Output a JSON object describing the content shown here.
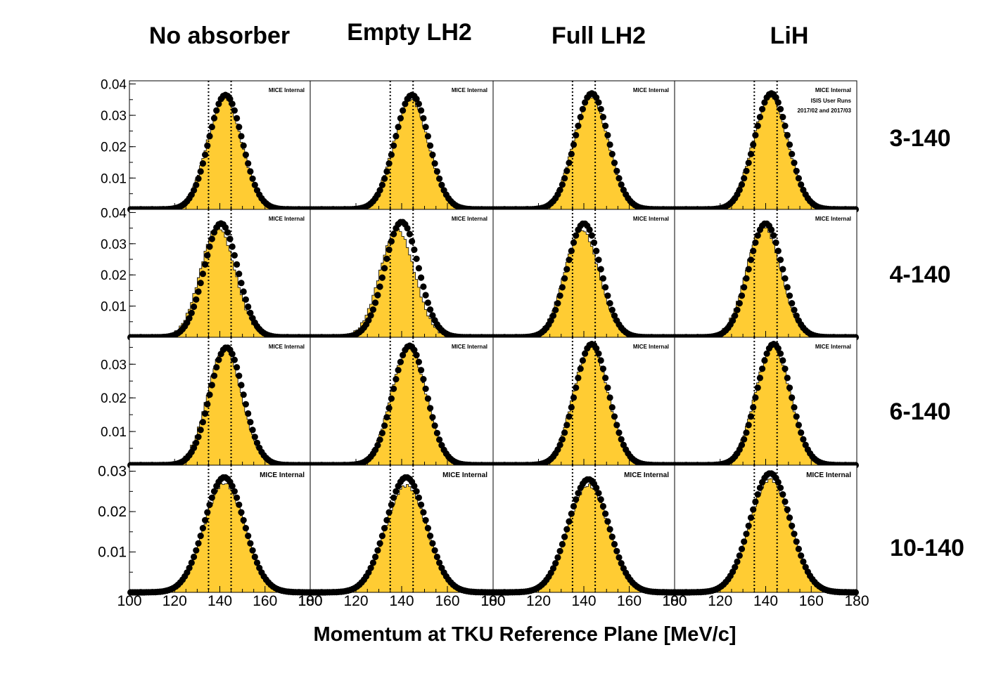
{
  "figure": {
    "column_titles": [
      "No absorber",
      "Empty LH2",
      "Full LH2",
      "LiH"
    ],
    "row_labels": [
      "3-140",
      "4-140",
      "6-140",
      "10-140"
    ],
    "xlabel": "Momentum at TKU Reference Plane [MeV/c]",
    "panel_label": "MICE Internal",
    "extra_labels": [
      "ISIS User Runs",
      "2017/02 and 2017/03"
    ],
    "colors": {
      "mc_fill": "#ffcc33",
      "mc_line": "#000000",
      "data_marker": "#000000"
    }
  },
  "chart_data": {
    "type": "bar",
    "layout": "4x4 grid of histograms (rows = beam setting, columns = absorber)",
    "xlim": [
      100,
      180
    ],
    "x_ticks": [
      100,
      120,
      140,
      160,
      180
    ],
    "selection_lines": [
      135,
      145
    ],
    "series_description": "yellow histogram = simulation, black markers = data",
    "rows": [
      {
        "label": "3-140",
        "ylim": [
          0,
          0.041
        ],
        "y_ticks": [
          0.01,
          0.02,
          0.03,
          0.04
        ],
        "panels": [
          {
            "column": "No absorber",
            "mc": {
              "mean": 142,
              "sigma": 7.6,
              "peak": 0.0355
            },
            "data": {
              "mean": 142.5,
              "sigma": 7.4,
              "peak": 0.0365
            }
          },
          {
            "column": "Empty LH2",
            "mc": {
              "mean": 144,
              "sigma": 7.6,
              "peak": 0.035
            },
            "data": {
              "mean": 144.5,
              "sigma": 7.4,
              "peak": 0.0365
            }
          },
          {
            "column": "Full LH2",
            "mc": {
              "mean": 143,
              "sigma": 7.6,
              "peak": 0.036
            },
            "data": {
              "mean": 143.5,
              "sigma": 7.4,
              "peak": 0.037
            }
          },
          {
            "column": "LiH",
            "mc": {
              "mean": 142,
              "sigma": 7.6,
              "peak": 0.036
            },
            "data": {
              "mean": 142.5,
              "sigma": 7.4,
              "peak": 0.037
            }
          }
        ]
      },
      {
        "label": "4-140",
        "ylim": [
          0,
          0.041
        ],
        "y_ticks": [
          0.01,
          0.02,
          0.03,
          0.04
        ],
        "panels": [
          {
            "column": "No absorber",
            "mc": {
              "mean": 139,
              "sigma": 7.6,
              "peak": 0.0355
            },
            "data": {
              "mean": 140.5,
              "sigma": 7.4,
              "peak": 0.0365
            }
          },
          {
            "column": "Empty LH2",
            "mc": {
              "mean": 138,
              "sigma": 7.6,
              "peak": 0.0345
            },
            "data": {
              "mean": 140,
              "sigma": 7.4,
              "peak": 0.037
            }
          },
          {
            "column": "Full LH2",
            "mc": {
              "mean": 139,
              "sigma": 7.6,
              "peak": 0.0345
            },
            "data": {
              "mean": 140,
              "sigma": 7.4,
              "peak": 0.0365
            }
          },
          {
            "column": "LiH",
            "mc": {
              "mean": 139,
              "sigma": 7.6,
              "peak": 0.0355
            },
            "data": {
              "mean": 140,
              "sigma": 7.4,
              "peak": 0.0365
            }
          }
        ]
      },
      {
        "label": "6-140",
        "ylim": [
          0,
          0.038
        ],
        "y_ticks": [
          0.01,
          0.02,
          0.03
        ],
        "panels": [
          {
            "column": "No absorber",
            "mc": {
              "mean": 142,
              "sigma": 7.6,
              "peak": 0.0345
            },
            "data": {
              "mean": 143,
              "sigma": 7.4,
              "peak": 0.035
            }
          },
          {
            "column": "Empty LH2",
            "mc": {
              "mean": 143,
              "sigma": 7.6,
              "peak": 0.035
            },
            "data": {
              "mean": 143.5,
              "sigma": 7.4,
              "peak": 0.0355
            }
          },
          {
            "column": "Full LH2",
            "mc": {
              "mean": 143,
              "sigma": 7.6,
              "peak": 0.0355
            },
            "data": {
              "mean": 143.5,
              "sigma": 7.4,
              "peak": 0.036
            }
          },
          {
            "column": "LiH",
            "mc": {
              "mean": 143,
              "sigma": 7.6,
              "peak": 0.0355
            },
            "data": {
              "mean": 143.5,
              "sigma": 7.4,
              "peak": 0.036
            }
          }
        ]
      },
      {
        "label": "10-140",
        "ylim": [
          0,
          0.0315
        ],
        "y_ticks": [
          0.01,
          0.02,
          0.03
        ],
        "panels": [
          {
            "column": "No absorber",
            "mc": {
              "mean": 142,
              "sigma": 9,
              "peak": 0.027
            },
            "data": {
              "mean": 142,
              "sigma": 8.8,
              "peak": 0.0285
            }
          },
          {
            "column": "Empty LH2",
            "mc": {
              "mean": 142,
              "sigma": 9,
              "peak": 0.0265
            },
            "data": {
              "mean": 142,
              "sigma": 8.8,
              "peak": 0.0285
            }
          },
          {
            "column": "Full LH2",
            "mc": {
              "mean": 142,
              "sigma": 9,
              "peak": 0.0265
            },
            "data": {
              "mean": 142,
              "sigma": 8.8,
              "peak": 0.028
            }
          },
          {
            "column": "LiH",
            "mc": {
              "mean": 142,
              "sigma": 9,
              "peak": 0.028
            },
            "data": {
              "mean": 142,
              "sigma": 8.8,
              "peak": 0.0295
            }
          }
        ]
      }
    ]
  }
}
